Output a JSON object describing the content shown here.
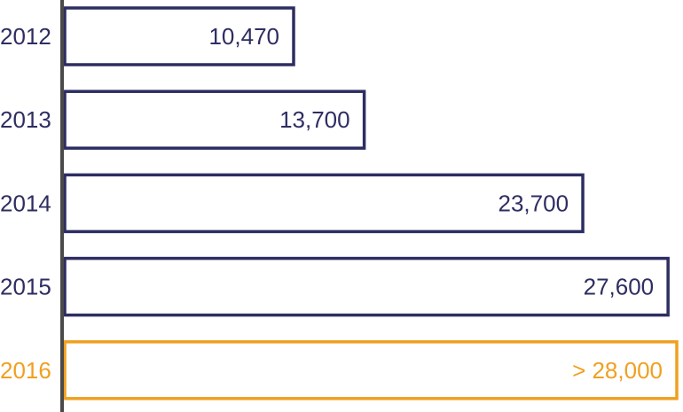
{
  "chart_data": {
    "type": "bar",
    "orientation": "horizontal",
    "title": "",
    "xlabel": "",
    "ylabel": "",
    "categories": [
      "2012",
      "2013",
      "2014",
      "2015",
      "2016"
    ],
    "values": [
      10470,
      13700,
      23700,
      27600,
      28000
    ],
    "value_labels": [
      "10,470",
      "13,700",
      "23,700",
      "27,600",
      "> 28,000"
    ],
    "xlim": [
      0,
      28000
    ],
    "grid": false,
    "legend": "none",
    "bar_fill": "#ffffff",
    "colors": {
      "default": "#2e2d62",
      "highlight": "#f0a020",
      "axis": "#4a4a4a"
    },
    "highlight_index": 4
  }
}
